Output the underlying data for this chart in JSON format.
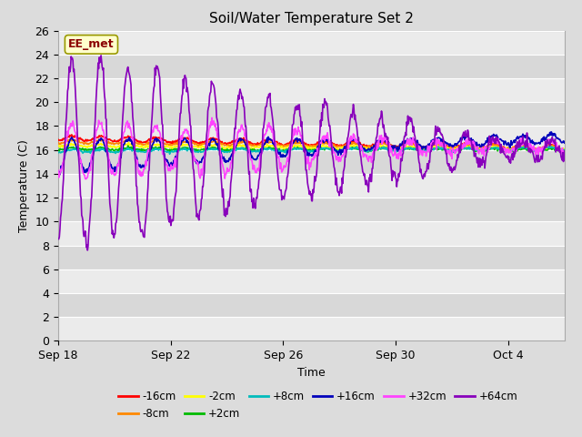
{
  "title": "Soil/Water Temperature Set 2",
  "xlabel": "Time",
  "ylabel": "Temperature (C)",
  "ylim": [
    0,
    26
  ],
  "xlim": [
    0,
    18
  ],
  "yticks": [
    0,
    2,
    4,
    6,
    8,
    10,
    12,
    14,
    16,
    18,
    20,
    22,
    24,
    26
  ],
  "xtick_labels": [
    "Sep 18",
    "Sep 22",
    "Sep 26",
    "Sep 30",
    "Oct 4"
  ],
  "xtick_positions": [
    0,
    4,
    8,
    12,
    16
  ],
  "annotation_text": "EE_met",
  "annotation_color": "#8B0000",
  "annotation_bg": "#FFFFCC",
  "annotation_border": "#999900",
  "series": {
    "-16cm": {
      "color": "#FF0000",
      "lw": 1.2
    },
    "-8cm": {
      "color": "#FF8800",
      "lw": 1.2
    },
    "-2cm": {
      "color": "#FFFF00",
      "lw": 1.2
    },
    "+2cm": {
      "color": "#00BB00",
      "lw": 1.2
    },
    "+8cm": {
      "color": "#00BBBB",
      "lw": 1.2
    },
    "+16cm": {
      "color": "#0000BB",
      "lw": 1.2
    },
    "+32cm": {
      "color": "#FF44FF",
      "lw": 1.2
    },
    "+64cm": {
      "color": "#8800BB",
      "lw": 1.2
    }
  },
  "bg_color": "#DCDCDC",
  "plot_bg_light": "#EBEBEB",
  "plot_bg_dark": "#D8D8D8",
  "grid_color": "#FFFFFF",
  "font_color": "#000000",
  "band_step": 2
}
